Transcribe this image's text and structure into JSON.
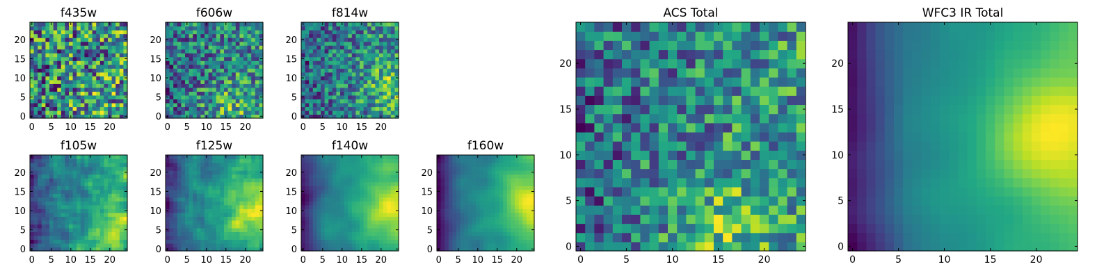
{
  "chart_data": [
    {
      "type": "heatmap",
      "title": "f435w",
      "grid_size": 25,
      "xlim": [
        0,
        24
      ],
      "ylim": [
        0,
        24
      ],
      "xticks": [
        0,
        5,
        10,
        15,
        20
      ],
      "yticks": [
        0,
        5,
        10,
        15,
        20
      ],
      "colormap": "viridis",
      "seed": 11,
      "smooth": 0,
      "gradient": 0.1,
      "hotspot": [
        16,
        2
      ],
      "hot_strength": 0.1,
      "noise": 0.75,
      "dark_left": 0.0
    },
    {
      "type": "heatmap",
      "title": "f606w",
      "grid_size": 25,
      "xlim": [
        0,
        24
      ],
      "ylim": [
        0,
        24
      ],
      "xticks": [
        0,
        5,
        10,
        15,
        20
      ],
      "yticks": [
        0,
        5,
        10,
        15,
        20
      ],
      "colormap": "viridis",
      "seed": 23,
      "smooth": 0,
      "gradient": 0.15,
      "hotspot": [
        16,
        2
      ],
      "hot_strength": 0.25,
      "noise": 0.65,
      "dark_left": 0.1
    },
    {
      "type": "heatmap",
      "title": "f814w",
      "grid_size": 25,
      "xlim": [
        0,
        24
      ],
      "ylim": [
        0,
        24
      ],
      "xticks": [
        0,
        5,
        10,
        15,
        20
      ],
      "yticks": [
        0,
        5,
        10,
        15,
        20
      ],
      "colormap": "viridis",
      "seed": 37,
      "smooth": 0,
      "gradient": 0.2,
      "hotspot": [
        22,
        8
      ],
      "hot_strength": 0.3,
      "noise": 0.6,
      "dark_left": 0.15
    },
    {
      "type": "heatmap",
      "title": "f105w",
      "grid_size": 25,
      "xlim": [
        0,
        24
      ],
      "ylim": [
        0,
        24
      ],
      "xticks": [
        0,
        5,
        10,
        15,
        20
      ],
      "yticks": [
        0,
        5,
        10,
        15,
        20
      ],
      "colormap": "viridis",
      "seed": 41,
      "smooth": 1,
      "gradient": 0.35,
      "hotspot": [
        20,
        6
      ],
      "hot_strength": 0.35,
      "noise": 0.45,
      "dark_left": 0.3
    },
    {
      "type": "heatmap",
      "title": "f125w",
      "grid_size": 25,
      "xlim": [
        0,
        24
      ],
      "ylim": [
        0,
        24
      ],
      "xticks": [
        0,
        5,
        10,
        15,
        20
      ],
      "yticks": [
        0,
        5,
        10,
        15,
        20
      ],
      "colormap": "viridis",
      "seed": 53,
      "smooth": 1,
      "gradient": 0.45,
      "hotspot": [
        22,
        10
      ],
      "hot_strength": 0.4,
      "noise": 0.35,
      "dark_left": 0.45
    },
    {
      "type": "heatmap",
      "title": "f140w",
      "grid_size": 25,
      "xlim": [
        0,
        24
      ],
      "ylim": [
        0,
        24
      ],
      "xticks": [
        0,
        5,
        10,
        15,
        20
      ],
      "yticks": [
        0,
        5,
        10,
        15,
        20
      ],
      "colormap": "viridis",
      "seed": 67,
      "smooth": 2,
      "gradient": 0.55,
      "hotspot": [
        22,
        11
      ],
      "hot_strength": 0.45,
      "noise": 0.25,
      "dark_left": 0.55
    },
    {
      "type": "heatmap",
      "title": "f160w",
      "grid_size": 25,
      "xlim": [
        0,
        24
      ],
      "ylim": [
        0,
        24
      ],
      "xticks": [
        0,
        5,
        10,
        15,
        20
      ],
      "yticks": [
        0,
        5,
        10,
        15,
        20
      ],
      "colormap": "viridis",
      "seed": 71,
      "smooth": 2,
      "gradient": 0.6,
      "hotspot": [
        22,
        12
      ],
      "hot_strength": 0.5,
      "noise": 0.2,
      "dark_left": 0.65
    },
    {
      "type": "heatmap",
      "title": "ACS Total",
      "grid_size": 25,
      "xlim": [
        0,
        24
      ],
      "ylim": [
        0,
        24
      ],
      "xticks": [
        0,
        5,
        10,
        15,
        20
      ],
      "yticks": [
        0,
        5,
        10,
        15,
        20
      ],
      "colormap": "viridis",
      "seed": 83,
      "smooth": 0,
      "gradient": 0.2,
      "hotspot": [
        16,
        2
      ],
      "hot_strength": 0.3,
      "noise": 0.55,
      "dark_left": 0.1
    },
    {
      "type": "heatmap",
      "title": "WFC3 IR Total",
      "grid_size": 25,
      "xlim": [
        0,
        24
      ],
      "ylim": [
        0,
        24
      ],
      "xticks": [
        0,
        5,
        10,
        15,
        20
      ],
      "yticks": [
        0,
        5,
        10,
        15,
        20
      ],
      "colormap": "viridis",
      "seed": 97,
      "smooth": 3,
      "gradient": 0.6,
      "hotspot": [
        21,
        12
      ],
      "hot_strength": 0.5,
      "noise": 0.15,
      "dark_left": 0.7
    }
  ]
}
